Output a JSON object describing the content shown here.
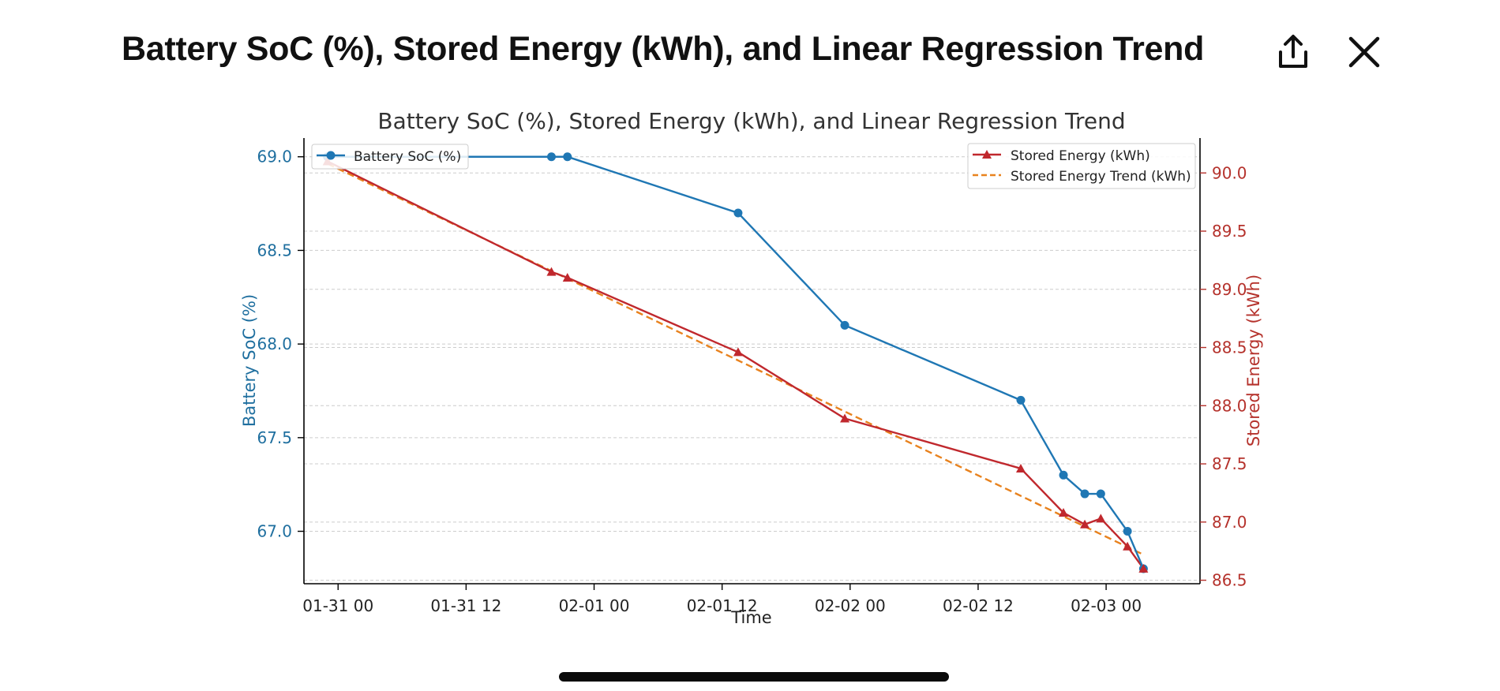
{
  "header": {
    "title": "Battery SoC (%), Stored Energy (kWh), and Linear Regression Trend",
    "share_icon": "share-icon",
    "close_icon": "close-icon"
  },
  "colors": {
    "soc": "#1f77b4",
    "energy": "#c0282d",
    "trend": "#e8821e",
    "soc_axis_text": "#1f6f9f",
    "energy_axis_text": "#b5322c"
  },
  "chart_data": {
    "type": "line",
    "title": "Battery SoC (%), Stored Energy (kWh), and Linear Regression Trend",
    "xlabel": "Time",
    "ylabel_left": "Battery SoC (%)",
    "ylabel_right": "Stored Energy (kWh)",
    "x_ticks": [
      "01-31 00",
      "01-31 12",
      "02-01 00",
      "02-01 12",
      "02-02 00",
      "02-02 12",
      "02-03 00"
    ],
    "x_tick_hours": [
      0,
      12,
      24,
      36,
      48,
      60,
      72
    ],
    "xlim_hours": [
      -3.2,
      80.8
    ],
    "ylim_left": [
      66.72,
      69.1
    ],
    "ylim_right": [
      86.47,
      90.3
    ],
    "y_ticks_left": [
      "67.0",
      "67.5",
      "68.0",
      "68.5",
      "69.0"
    ],
    "y_ticks_left_values": [
      67.0,
      67.5,
      68.0,
      68.5,
      69.0
    ],
    "y_ticks_right": [
      "86.5",
      "87.0",
      "87.5",
      "88.0",
      "88.5",
      "89.0",
      "89.5",
      "90.0"
    ],
    "y_ticks_right_values": [
      86.5,
      87.0,
      87.5,
      88.0,
      88.5,
      89.0,
      89.5,
      90.0
    ],
    "grid": "horizontal-dashed",
    "legend_left": {
      "placement": "upper-left",
      "entries": [
        "Battery SoC (%)"
      ]
    },
    "legend_right": {
      "placement": "upper-right",
      "entries": [
        "Stored Energy (kWh)",
        "Stored Energy Trend (kWh)"
      ]
    },
    "series": [
      {
        "name": "Battery SoC (%)",
        "axis": "left",
        "marker": "circle",
        "x_hours": [
          -1,
          20,
          21.5,
          37.5,
          47.5,
          64,
          68,
          70,
          71.5,
          74,
          75.5
        ],
        "values": [
          69.0,
          69.0,
          69.0,
          68.7,
          68.1,
          67.7,
          67.3,
          67.2,
          67.2,
          67.0,
          66.8
        ]
      },
      {
        "name": "Stored Energy (kWh)",
        "axis": "right",
        "marker": "triangle",
        "x_hours": [
          -1,
          20,
          21.5,
          37.5,
          47.5,
          64,
          68,
          70,
          71.5,
          74,
          75.5
        ],
        "values": [
          90.1,
          89.15,
          89.1,
          88.46,
          87.89,
          87.46,
          87.08,
          86.98,
          87.03,
          86.79,
          86.6
        ]
      },
      {
        "name": "Stored Energy Trend (kWh)",
        "axis": "right",
        "style": "dashed",
        "x_hours": [
          -1,
          75.5
        ],
        "values": [
          90.08,
          86.72
        ]
      }
    ]
  }
}
